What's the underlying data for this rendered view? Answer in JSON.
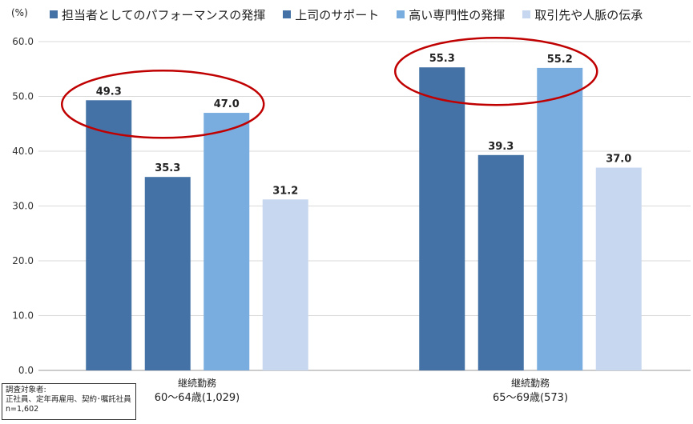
{
  "chart_data": {
    "type": "bar",
    "unit_label": "(%)",
    "categories": [
      {
        "line1": "継続勤務",
        "line2": "60～64歳(1,029)"
      },
      {
        "line1": "継続勤務",
        "line2": "65～69歳(573)"
      }
    ],
    "series": [
      {
        "name": "担当者としてのパフォーマンスの発揮",
        "color": "#4472a6",
        "values": [
          49.3,
          55.3
        ]
      },
      {
        "name": "上司のサポート",
        "color": "#4472a6",
        "values": [
          35.3,
          39.3
        ]
      },
      {
        "name": "高い専門性の発揮",
        "color": "#7aaddf",
        "values": [
          47.0,
          55.2
        ]
      },
      {
        "name": "取引先や人脈の伝承",
        "color": "#c7d7ef",
        "values": [
          31.2,
          37.0
        ]
      }
    ],
    "ylim": [
      0,
      60
    ],
    "yticks": [
      "0.0",
      "10.0",
      "20.0",
      "30.0",
      "40.0",
      "50.0",
      "60.0"
    ],
    "grid": true,
    "legend_position": "top",
    "highlight_color": "#c00000",
    "highlighted_series": [
      0,
      2
    ]
  },
  "note": {
    "line1": "調査対象者:",
    "line2": "正社員、定年再雇用、契約･嘱託社員",
    "line3": "n=1,602"
  }
}
